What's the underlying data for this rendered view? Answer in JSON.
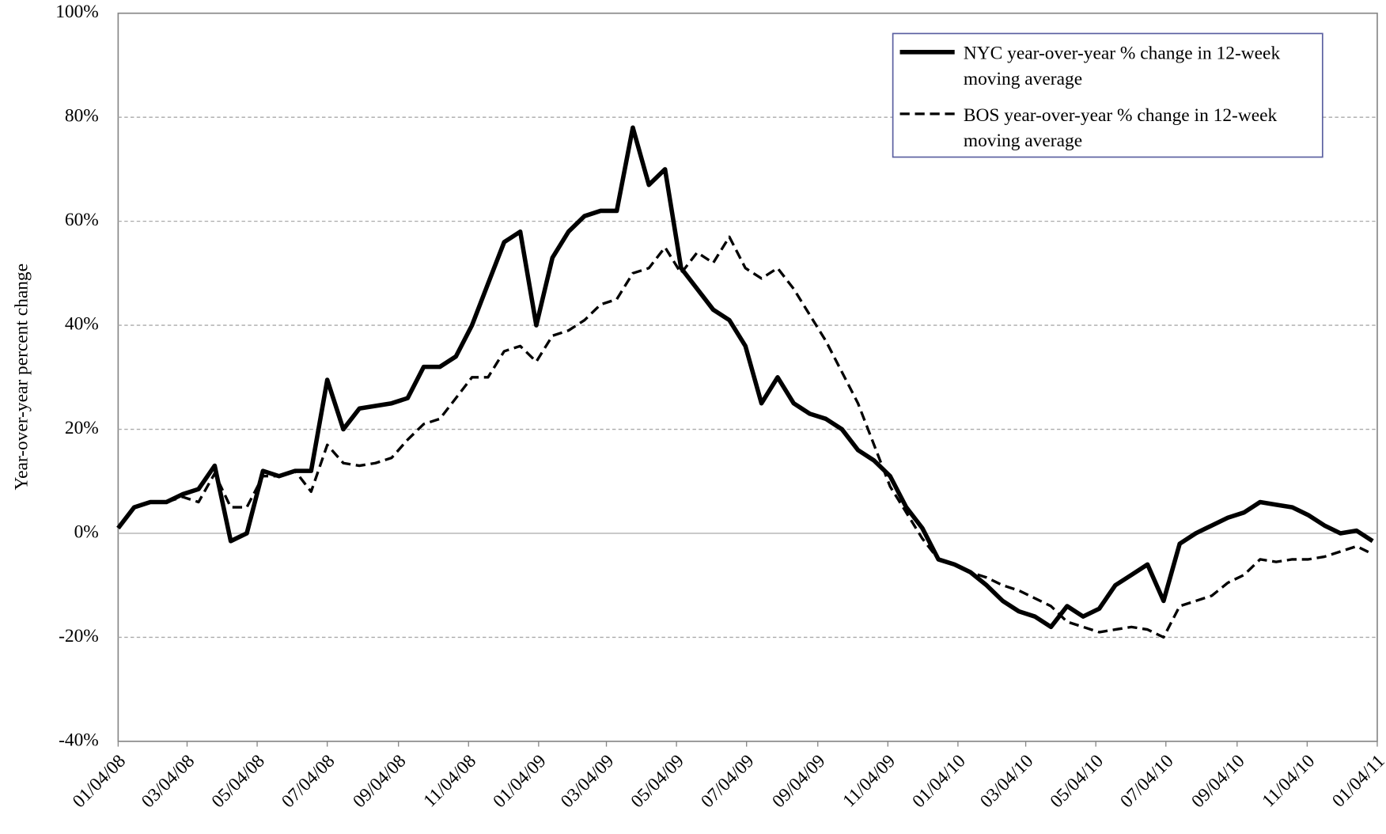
{
  "chart_data": {
    "type": "line",
    "y_label": "Year-over-year percent change",
    "x": [
      "01/04/08",
      "01/18/08",
      "02/01/08",
      "02/15/08",
      "02/29/08",
      "03/14/08",
      "03/28/08",
      "04/11/08",
      "04/25/08",
      "05/09/08",
      "05/23/08",
      "06/06/08",
      "06/20/08",
      "07/04/08",
      "07/18/08",
      "08/01/08",
      "08/15/08",
      "08/29/08",
      "09/12/08",
      "09/26/08",
      "10/10/08",
      "10/24/08",
      "11/07/08",
      "11/21/08",
      "12/05/08",
      "12/19/08",
      "01/02/09",
      "01/16/09",
      "01/30/09",
      "02/13/09",
      "02/27/09",
      "03/13/09",
      "03/27/09",
      "04/10/09",
      "04/24/09",
      "05/08/09",
      "05/22/09",
      "06/05/09",
      "06/19/09",
      "07/03/09",
      "07/17/09",
      "07/31/09",
      "08/14/09",
      "08/28/09",
      "09/11/09",
      "09/25/09",
      "10/09/09",
      "10/23/09",
      "11/06/09",
      "11/20/09",
      "12/04/09",
      "12/18/09",
      "01/01/10",
      "01/15/10",
      "01/29/10",
      "02/12/10",
      "02/26/10",
      "03/12/10",
      "03/26/10",
      "04/09/10",
      "04/23/10",
      "05/07/10",
      "05/21/10",
      "06/04/10",
      "06/18/10",
      "07/02/10",
      "07/16/10",
      "07/30/10",
      "08/13/10",
      "08/27/10",
      "09/10/10",
      "09/24/10",
      "10/08/10",
      "10/22/10",
      "11/05/10",
      "11/19/10",
      "12/03/10",
      "12/17/10",
      "12/31/10"
    ],
    "series": [
      {
        "name": "NYC year-over-year % change in 12-week moving average",
        "color": "#000000",
        "line_style": "solid",
        "values": [
          1,
          5,
          6,
          6,
          7.5,
          8.5,
          13,
          -1.5,
          0,
          12,
          11,
          12,
          12,
          29.5,
          20,
          24,
          24.5,
          25,
          26,
          32,
          32,
          34,
          40,
          48,
          56,
          58,
          40,
          53,
          58,
          61,
          62,
          62,
          78,
          67,
          70,
          51,
          47,
          43,
          41,
          36,
          25,
          30,
          25,
          23,
          22,
          20,
          16,
          14,
          11,
          5,
          1,
          -5,
          -6,
          -7.5,
          -10,
          -13,
          -15,
          -16,
          -18,
          -14,
          -16,
          -14.5,
          -10,
          -8,
          -6,
          -13,
          -2,
          0,
          1.5,
          3,
          4,
          6,
          5.5,
          5,
          3.5,
          1.5,
          0,
          0.5,
          -1.5
        ]
      },
      {
        "name": "BOS year-over-year % change in 12-week moving average",
        "color": "#000000",
        "line_style": "dashed",
        "values": [
          1,
          5,
          6,
          6,
          7,
          6,
          11.5,
          5,
          5,
          11,
          11,
          12,
          8,
          17,
          13.5,
          13,
          13.5,
          14.5,
          18,
          21,
          22,
          26,
          30,
          30,
          35,
          36,
          33,
          38,
          39,
          41,
          44,
          45,
          50,
          51,
          55,
          50,
          54,
          52,
          57,
          51,
          49,
          51,
          47,
          42,
          37,
          31,
          25,
          17,
          9,
          4,
          -1,
          -5,
          -6,
          -7.5,
          -8.5,
          -10,
          -11,
          -12.5,
          -14,
          -17,
          -18,
          -19,
          -18.5,
          -18,
          -18.5,
          -20,
          -14,
          -13,
          -12,
          -9.5,
          -8,
          -5,
          -5.5,
          -5,
          -5,
          -4.5,
          -3.5,
          -2.5,
          -4
        ]
      }
    ],
    "xlim": [
      "01/04/08",
      "01/04/11"
    ],
    "xticks": [
      "01/04/08",
      "03/04/08",
      "05/04/08",
      "07/04/08",
      "09/04/08",
      "11/04/08",
      "01/04/09",
      "03/04/09",
      "05/04/09",
      "07/04/09",
      "09/04/09",
      "11/04/09",
      "01/04/10",
      "03/04/10",
      "05/04/10",
      "07/04/10",
      "09/04/10",
      "11/04/10",
      "01/04/11"
    ],
    "ylim": [
      -40,
      100
    ],
    "yticks": [
      {
        "value": -40,
        "label": "-40%"
      },
      {
        "value": -20,
        "label": "-20%"
      },
      {
        "value": 0,
        "label": "0%"
      },
      {
        "value": 20,
        "label": "20%"
      },
      {
        "value": 40,
        "label": "40%"
      },
      {
        "value": 60,
        "label": "60%"
      },
      {
        "value": 80,
        "label": "80%"
      },
      {
        "value": 100,
        "label": "100%"
      }
    ],
    "grid": true,
    "legend": "upper right"
  }
}
